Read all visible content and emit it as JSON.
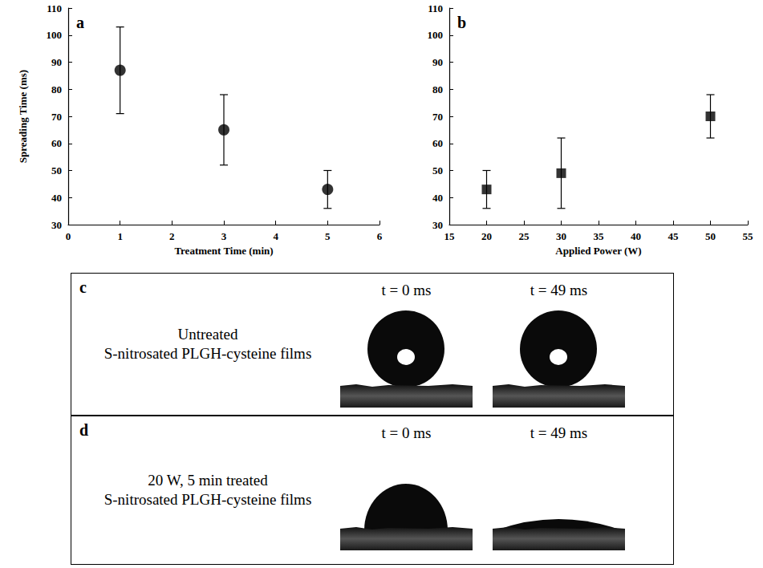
{
  "chart_data": [
    {
      "type": "scatter",
      "panel_label": "a",
      "xlabel": "Treatment Time (min)",
      "ylabel": "Spreading Time (ms)",
      "x": [
        1,
        3,
        5
      ],
      "values": [
        87,
        65,
        43
      ],
      "errors": [
        16,
        13,
        7
      ],
      "xlim": [
        0,
        6
      ],
      "xticks": [
        0,
        1,
        2,
        3,
        4,
        5,
        6
      ],
      "ylim": [
        30,
        110
      ],
      "yticks": [
        30,
        40,
        50,
        60,
        70,
        80,
        90,
        100,
        110
      ],
      "marker": "circle",
      "color": "#000000",
      "grid": false
    },
    {
      "type": "scatter",
      "panel_label": "b",
      "xlabel": "Applied Power (W)",
      "x": [
        20,
        30,
        50
      ],
      "values": [
        43,
        49,
        70
      ],
      "errors": [
        7,
        13,
        8
      ],
      "xlim": [
        15,
        55
      ],
      "xticks": [
        15,
        20,
        25,
        30,
        35,
        40,
        45,
        50,
        55
      ],
      "ylim": [
        30,
        110
      ],
      "yticks": [
        30,
        40,
        50,
        60,
        70,
        80,
        90,
        100,
        110
      ],
      "marker": "square",
      "color": "#000000",
      "grid": false
    }
  ],
  "panels": [
    {
      "letter": "c",
      "label": [
        "Untreated",
        "S-nitrosated PLGH-cysteine films"
      ],
      "frames": [
        "t = 0 ms",
        "t = 49 ms"
      ]
    },
    {
      "letter": "d",
      "label": [
        "20 W, 5 min treated",
        "S-nitrosated PLGH-cysteine films"
      ],
      "frames": [
        "t = 0 ms",
        "t = 49 ms"
      ]
    }
  ]
}
